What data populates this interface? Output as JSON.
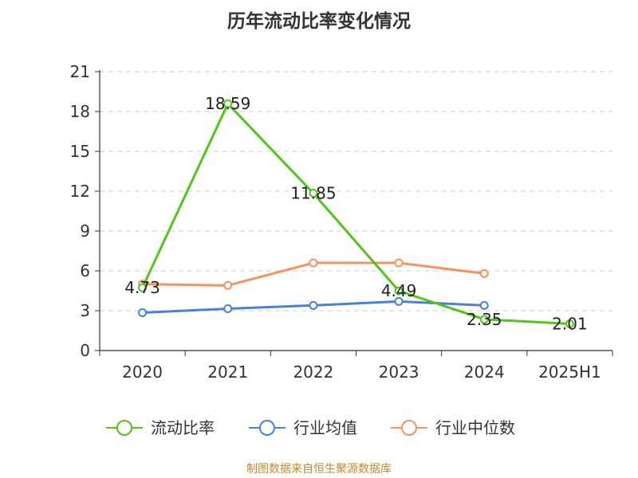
{
  "chart_data": {
    "type": "line",
    "title": "历年流动比率变化情况",
    "categories": [
      "2020",
      "2021",
      "2022",
      "2023",
      "2024",
      "2025H1"
    ],
    "ylim": [
      0,
      21
    ],
    "yticks": [
      "0",
      "3",
      "6",
      "9",
      "12",
      "15",
      "18",
      "21"
    ],
    "grid": true,
    "legend_position": "bottom",
    "series": [
      {
        "name": "流动比率",
        "color": "#52c41a",
        "values": [
          4.73,
          18.59,
          11.85,
          4.49,
          2.35,
          2.01
        ],
        "labels": [
          "4.73",
          "18.59",
          "11.85",
          "4.49",
          "2.35",
          "2.01"
        ]
      },
      {
        "name": "行业均值",
        "color": "#4a7fdb",
        "values": [
          2.85,
          3.15,
          3.4,
          3.7,
          3.4,
          null
        ]
      },
      {
        "name": "行业中位数",
        "color": "#f5925e",
        "values": [
          5.0,
          4.9,
          6.6,
          6.6,
          5.8,
          null
        ]
      }
    ]
  },
  "source": "制图数据来自恒生聚源数据库"
}
